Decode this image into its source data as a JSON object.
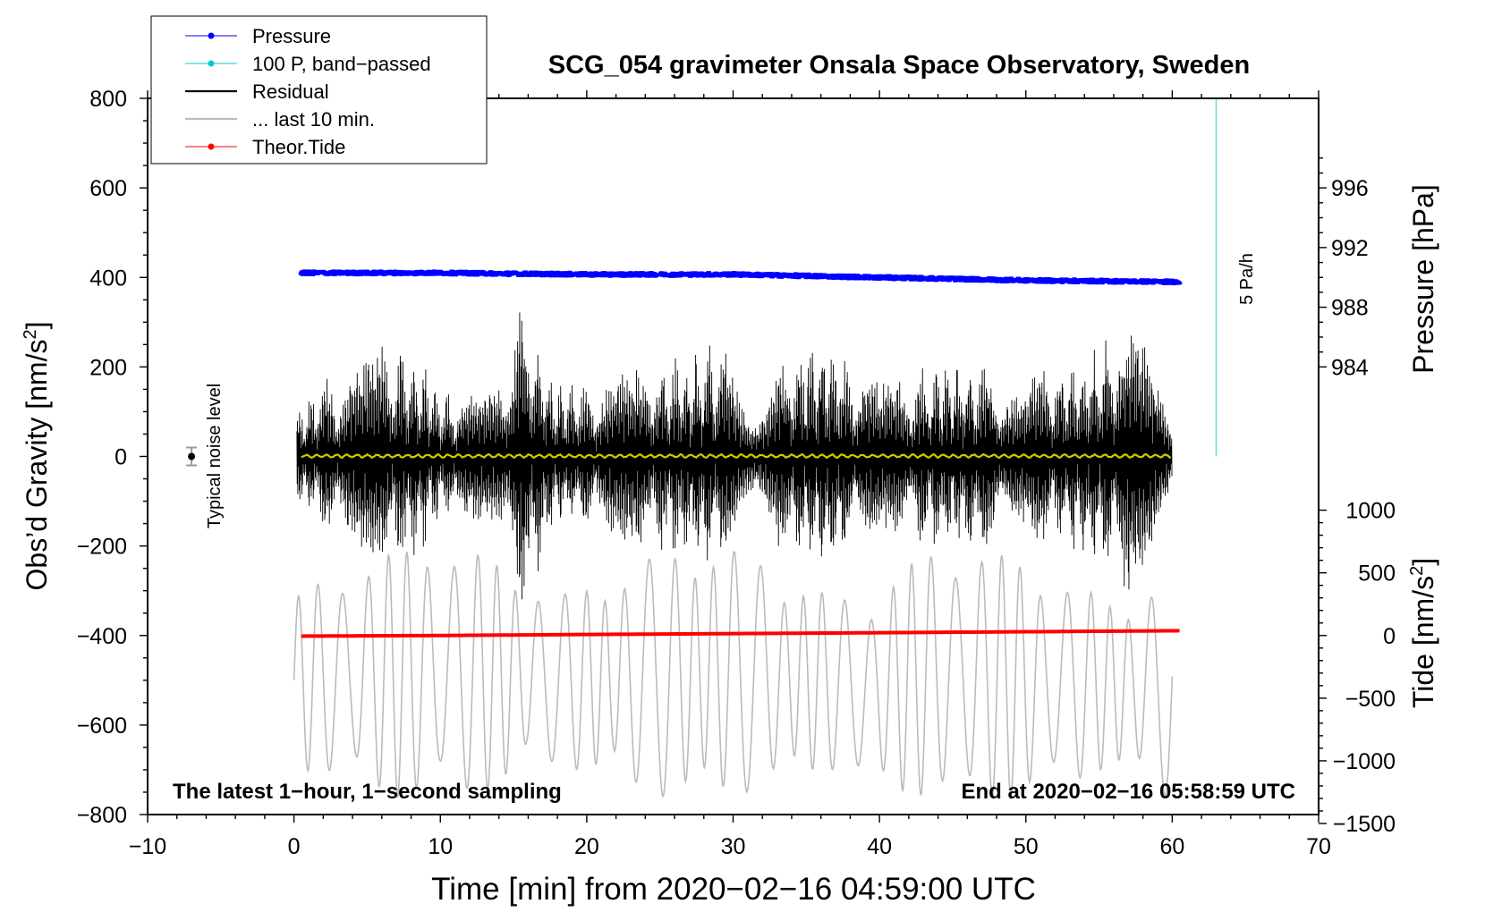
{
  "chart_data": {
    "type": "line",
    "title": "SCG_054 gravimeter Onsala Space Observatory, Sweden",
    "xlabel": "Time [min] from 2020−02−16 04:59:00 UTC",
    "ylabel_left": "Obs’d Gravity [nm/s²]",
    "ylabel_right_top": "Pressure [hPa]",
    "ylabel_right_bottom": "Tide [nm/s²]",
    "xlim": [
      -10,
      70
    ],
    "ylim_left": [
      -800,
      800
    ],
    "x_ticks": [
      "−10",
      "0",
      "10",
      "20",
      "30",
      "40",
      "50",
      "60",
      "70"
    ],
    "y_left_ticks": [
      "800",
      "600",
      "400",
      "200",
      "0",
      "−200",
      "−400",
      "−600",
      "−800"
    ],
    "pressure_axis": {
      "ticks": [
        "996",
        "992",
        "988",
        "984"
      ],
      "tick_values": [
        996,
        992,
        988,
        984
      ],
      "scale": "984 hPa at +200 and 996 hPa at +600 on the gravity axis"
    },
    "tide_axis": {
      "ticks": [
        "1000",
        "500",
        "0",
        "−500",
        "−1000",
        "−1500"
      ],
      "tick_values": [
        1000,
        500,
        0,
        -500,
        -1000,
        -1500
      ],
      "scale": "0 nm/s² at −400 and 1000 nm/s² at −120 on the gravity axis"
    },
    "legend": {
      "position": "top-left",
      "entries": [
        {
          "label": "Pressure",
          "color": "#0000ff",
          "style": "line-dot"
        },
        {
          "label": "100 P, band−passed",
          "color": "#00cccc",
          "style": "line-dot"
        },
        {
          "label": "Residual",
          "color": "#000000",
          "style": "line"
        },
        {
          "label": "... last 10 min.",
          "color": "#bbbbbb",
          "style": "line"
        },
        {
          "label": "Theor.Tide",
          "color": "#ff0000",
          "style": "line-dot"
        }
      ]
    },
    "series": [
      {
        "name": "Pressure",
        "unit": "hPa",
        "x": [
          0.5,
          10,
          20,
          30,
          40,
          50,
          60.5
        ],
        "values": [
          990.3,
          990.3,
          990.2,
          990.2,
          990.0,
          989.8,
          989.7
        ],
        "color": "#0000ff"
      },
      {
        "name": "Residual envelope",
        "unit": "nm/s²",
        "x": [
          0.2,
          2,
          4,
          8,
          10,
          12,
          15.5,
          18,
          22,
          26,
          28.5,
          32,
          36,
          40,
          44,
          48,
          52,
          55,
          57.5,
          60
        ],
        "values": [
          100,
          180,
          240,
          260,
          150,
          140,
          380,
          160,
          190,
          230,
          260,
          200,
          280,
          170,
          220,
          230,
          200,
          250,
          330,
          150
        ],
        "color": "#000000"
      },
      {
        "name": "Residual smoothed",
        "unit": "nm/s²",
        "x": [
          0.5,
          60
        ],
        "values": [
          2,
          0
        ],
        "color": "#cccc00"
      },
      {
        "name": "... last 10 min.",
        "unit": "nm/s²",
        "x": [
          0,
          10,
          20,
          30,
          40,
          44,
          50,
          60
        ],
        "values": [
          -500,
          -480,
          -500,
          -480,
          -520,
          -480,
          -500,
          -520
        ],
        "color": "#bbbbbb"
      },
      {
        "name": "Theor.Tide",
        "unit": "nm/s²",
        "x": [
          0.5,
          10,
          20,
          30,
          40,
          50,
          60.5
        ],
        "values": [
          -5,
          0,
          8,
          15,
          22,
          30,
          38
        ],
        "color": "#ff0000"
      },
      {
        "name": "5 Pa/h indicator",
        "x": [
          63,
          63
        ],
        "values": [
          0,
          800
        ],
        "color": "#66dddd"
      }
    ],
    "noise_marker": {
      "x": -7,
      "value": 0,
      "error": 20,
      "label": "Typical noise level"
    },
    "rate_label": "5 Pa/h",
    "annotations": {
      "bottom_left": "The latest 1−hour, 1−second sampling",
      "bottom_right": "End at 2020−02−16 05:58:59 UTC"
    }
  }
}
